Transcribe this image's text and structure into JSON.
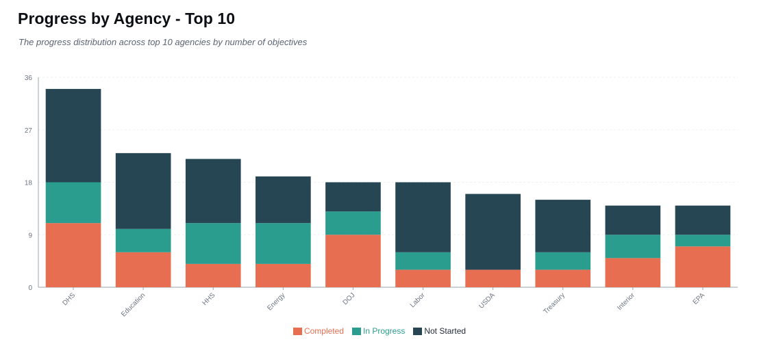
{
  "header": {
    "title": "Progress by Agency - Top 10",
    "subtitle": "The progress distribution across top 10 agencies by number of objectives"
  },
  "colors": {
    "completed": "#e76e50",
    "in_progress": "#2a9d8f",
    "not_started": "#264653",
    "axis": "#9aa3ad",
    "grid": "#eef0f2",
    "tick_text": "#6b7480",
    "not_started_legend_text": "#1f2937"
  },
  "chart_data": {
    "type": "bar",
    "stacked": true,
    "categories": [
      "DHS",
      "Education",
      "HHS",
      "Energy",
      "DOJ",
      "Labor",
      "USDA",
      "Treasury",
      "Interior",
      "EPA"
    ],
    "series": [
      {
        "name": "Completed",
        "values": [
          11,
          6,
          4,
          4,
          9,
          3,
          3,
          3,
          5,
          7
        ]
      },
      {
        "name": "In Progress",
        "values": [
          7,
          4,
          7,
          7,
          4,
          3,
          0,
          3,
          4,
          2
        ]
      },
      {
        "name": "Not Started",
        "values": [
          16,
          13,
          11,
          8,
          5,
          12,
          13,
          9,
          5,
          5
        ]
      }
    ],
    "ylim": [
      0,
      36
    ],
    "yticks": [
      0,
      9,
      18,
      27,
      36
    ],
    "grid": true,
    "legend_position": "bottom-center",
    "xlabel": "",
    "ylabel": ""
  }
}
